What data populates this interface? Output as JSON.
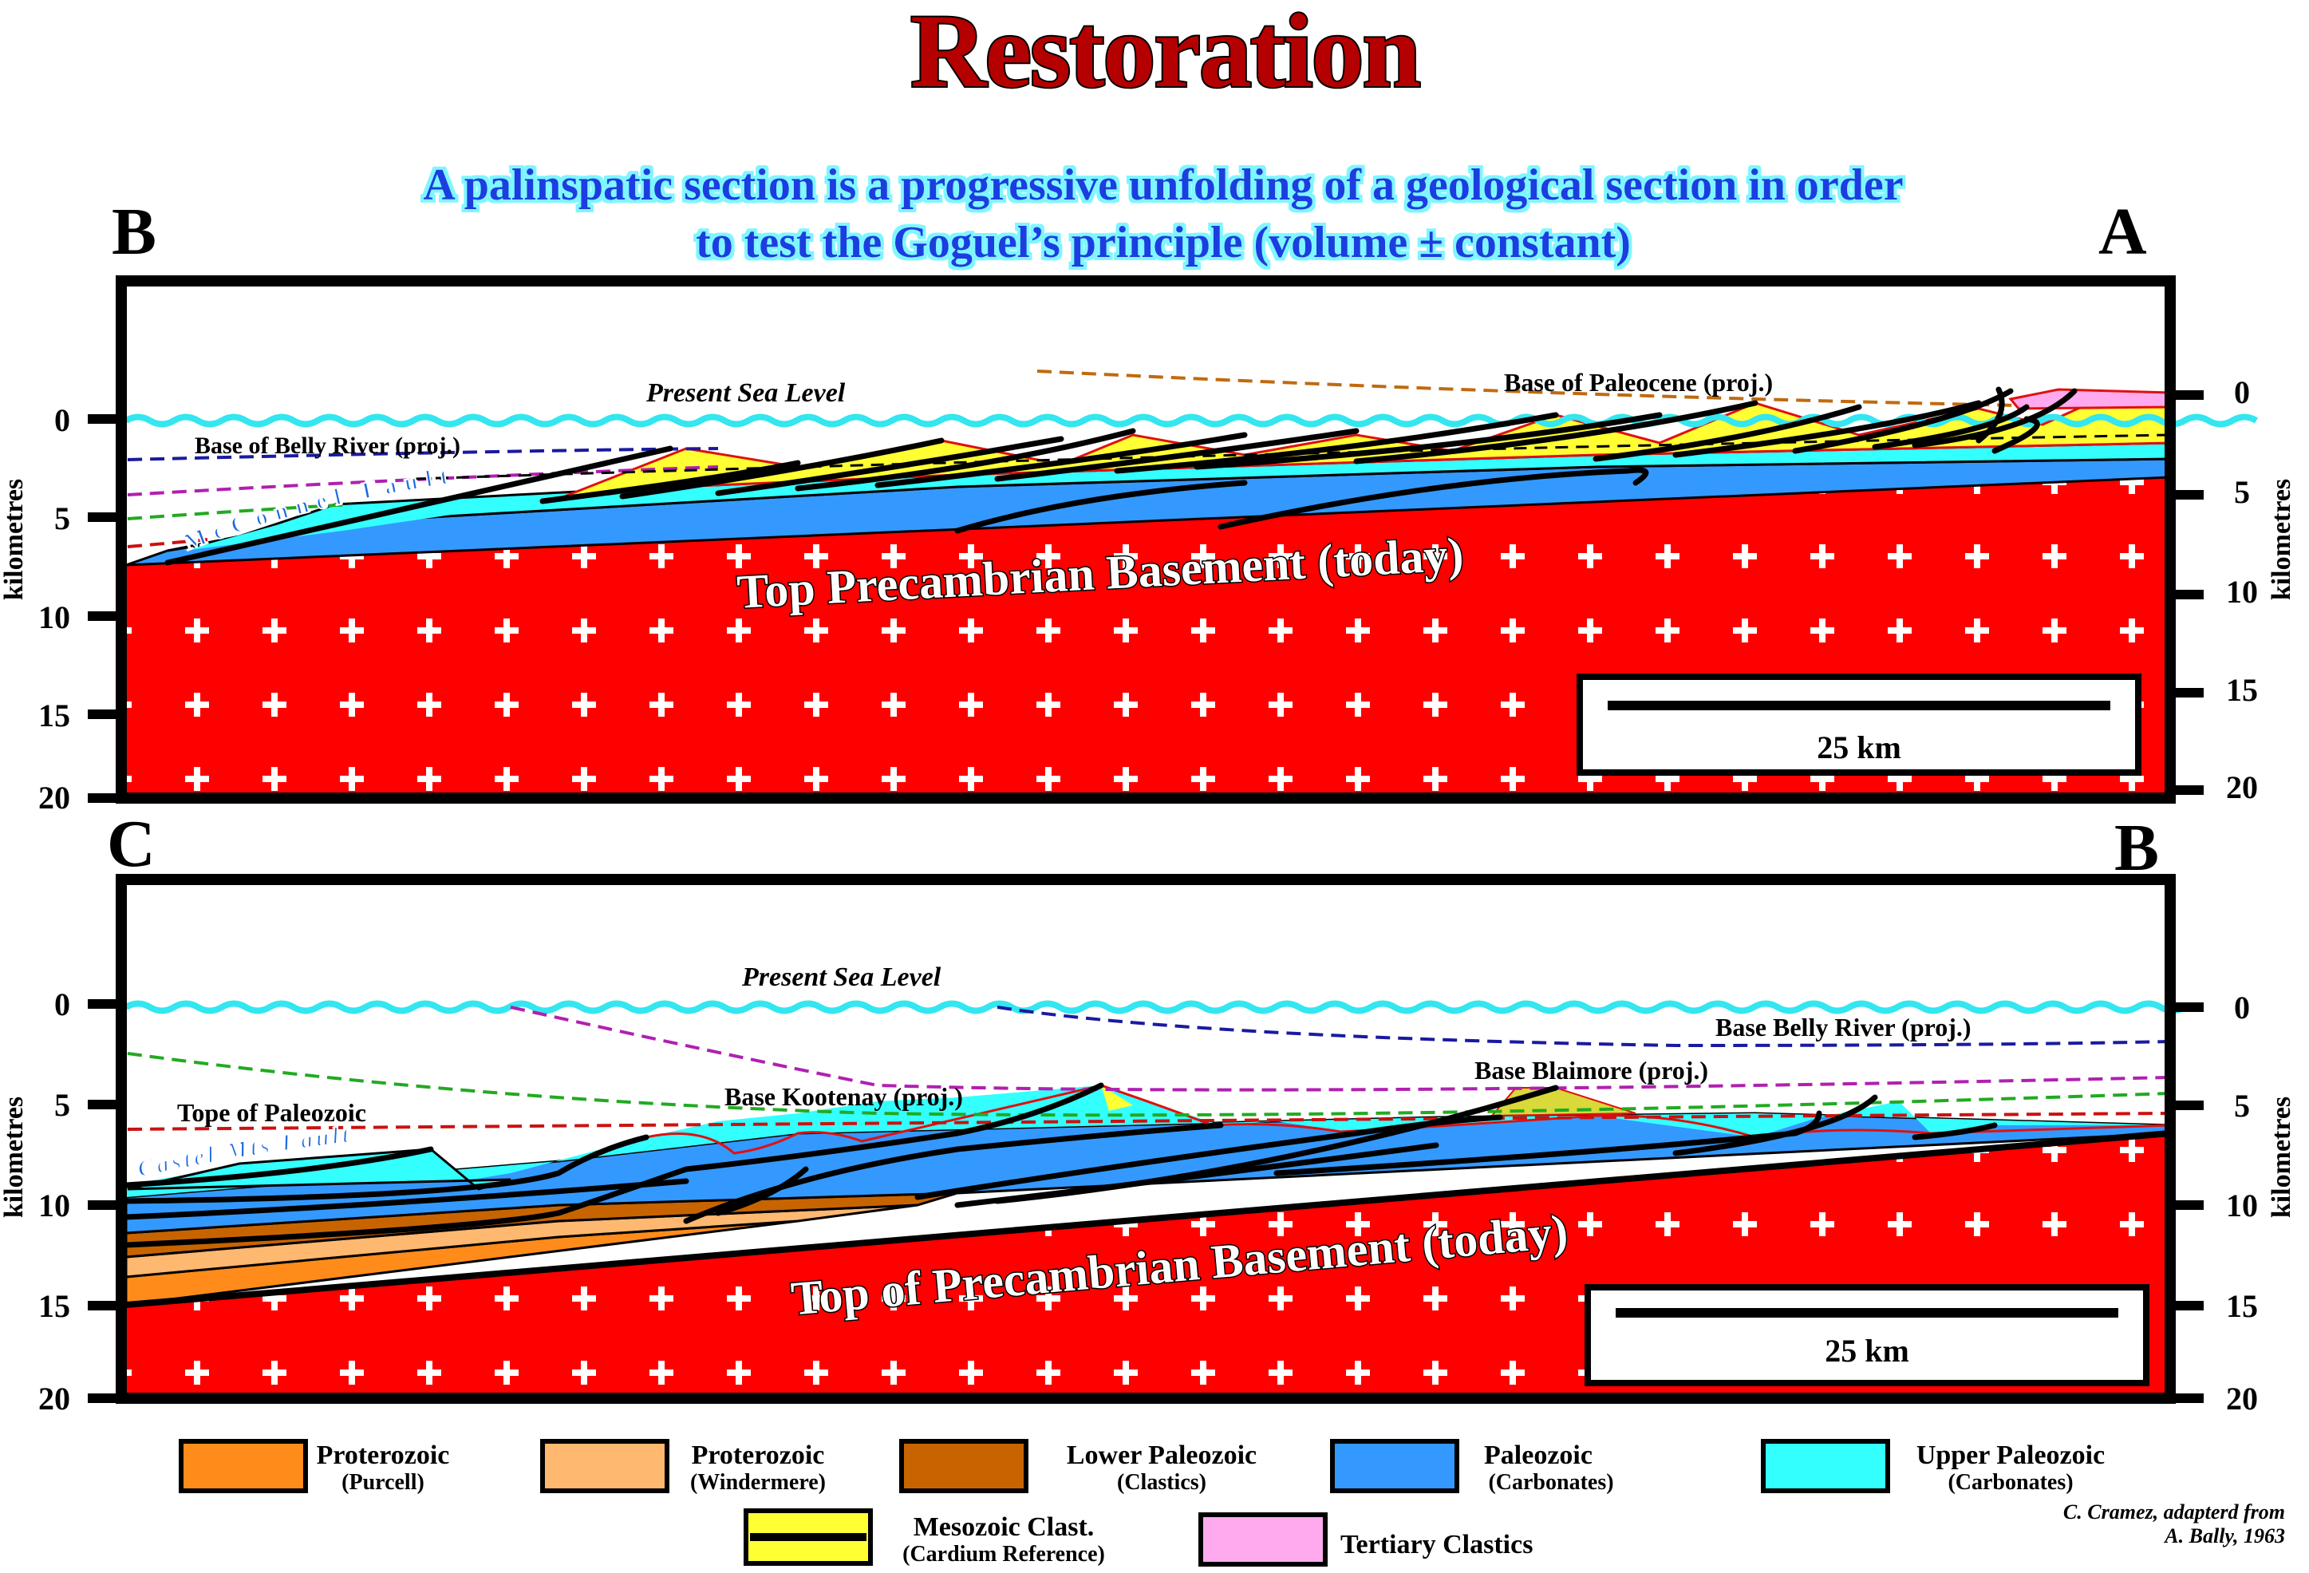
{
  "title": "Restoration",
  "subtitle": {
    "line1": "A palinspatic section is a progressive unfolding of a geological section in order",
    "line2": "to test the Goguel’s principle (volume ± constant)"
  },
  "axis": {
    "label": "kilometres",
    "ticks": [
      "0",
      "5",
      "10",
      "15",
      "20"
    ]
  },
  "section_top": {
    "left_label": "B",
    "right_label": "A",
    "sea_level_label": "Present Sea Level",
    "basement_label": "Top Precambrian Basement (today)",
    "fault_label": "McConnel Fault",
    "horizon_labels": {
      "belly_river": "Base of Belly River (proj.)",
      "paleocene": "Base of Paleocene (proj.)"
    },
    "scale_bar": "25 km"
  },
  "section_bottom": {
    "left_label": "C",
    "right_label": "B",
    "sea_level_label": "Present Sea Level",
    "basement_label": "Top of Precambrian Basement (today)",
    "fault_label": "Castel Mts Fault",
    "horizon_labels": {
      "belly_river": "Base Belly River (proj.)",
      "blaimore": "Base Blaimore (proj.)",
      "kootenay": "Base Kootenay (proj.)",
      "paleozoic_top": "Tope of Paleozoic"
    },
    "scale_bar": "25 km"
  },
  "legend": [
    {
      "name": "Proterozoic",
      "sub": "(Purcell)",
      "color": "#ff8c1a"
    },
    {
      "name": "Proterozoic",
      "sub": "(Windermere)",
      "color": "#ffb870"
    },
    {
      "name": "Lower Paleozoic",
      "sub": "(Clastics)",
      "color": "#c86400"
    },
    {
      "name": "Paleozoic",
      "sub": "(Carbonates)",
      "color": "#3399ff"
    },
    {
      "name": "Upper Paleozoic",
      "sub": "(Carbonates)",
      "color": "#33ffff"
    },
    {
      "name": "Mesozoic Clast.",
      "sub": "(Cardium Reference)",
      "color": "#ffff33"
    },
    {
      "name": "Tertiary Clastics",
      "sub": "",
      "color": "#ffaaee"
    }
  ],
  "credit": {
    "line1": "C. Cramez, adapterd from",
    "line2": "A. Bally, 1963"
  },
  "colors": {
    "basement": "#ff0000",
    "sea": "#33e6f0",
    "title_fill": "#cc0000",
    "subtitle_fill": "#1a40e6"
  }
}
